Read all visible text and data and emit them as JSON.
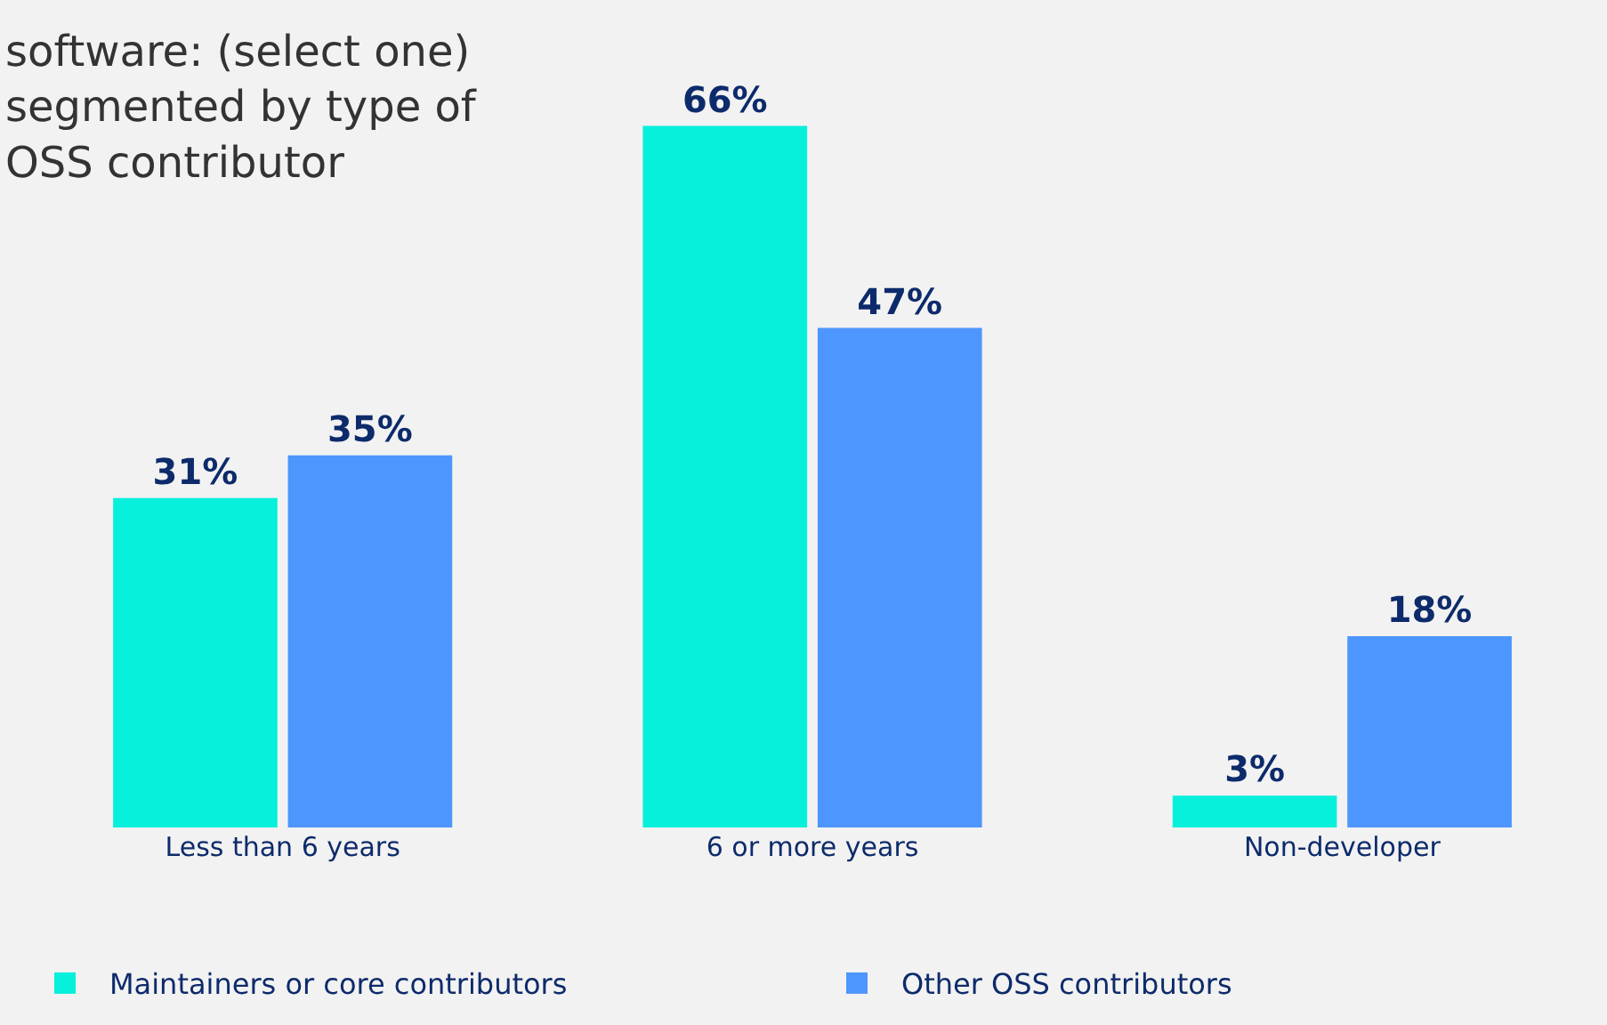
{
  "chart_data": {
    "type": "bar",
    "title": "software: (select one) segmented by type of OSS contributor",
    "categories": [
      "Less than 6 years",
      "6 or more years",
      "Non-developer"
    ],
    "series": [
      {
        "name": "Maintainers or core contributors",
        "color": "#07f0dc",
        "values": [
          31,
          66,
          3
        ],
        "value_labels": [
          "31%",
          "66%",
          "3%"
        ]
      },
      {
        "name": "Other OSS contributors",
        "color": "#4d96fd",
        "values": [
          35,
          47,
          18
        ],
        "value_labels": [
          "35%",
          "47%",
          "18%"
        ]
      }
    ],
    "legend": "bottom",
    "tick_labels": "x"
  }
}
